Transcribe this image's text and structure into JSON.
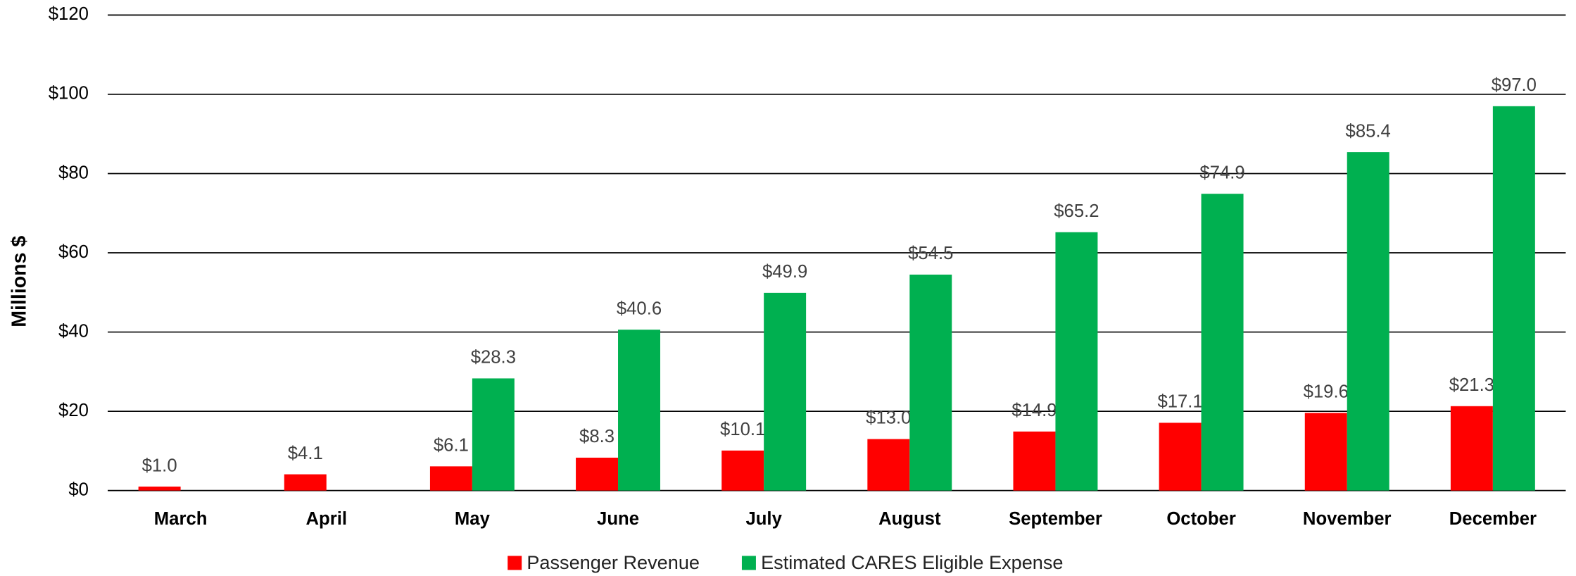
{
  "chart_data": {
    "type": "bar",
    "y_label": "Millions $",
    "categories": [
      "March",
      "April",
      "May",
      "June",
      "July",
      "August",
      "September",
      "October",
      "November",
      "December"
    ],
    "series": [
      {
        "name": "Passenger Revenue",
        "color": "#ff0000",
        "values": [
          1.0,
          4.1,
          6.1,
          8.3,
          10.1,
          13.0,
          14.9,
          17.1,
          19.6,
          21.3
        ],
        "value_labels": [
          "$1.0",
          "$4.1",
          "$6.1",
          "$8.3",
          "$10.1",
          "$13.0",
          "$14.9",
          "$17.1",
          "$19.6",
          "$21.3"
        ]
      },
      {
        "name": "Estimated CARES Eligible Expense",
        "color": "#00b050",
        "values": [
          null,
          null,
          28.3,
          40.6,
          49.9,
          54.5,
          65.2,
          74.9,
          85.4,
          97.0
        ],
        "value_labels": [
          null,
          null,
          "$28.3",
          "$40.6",
          "$49.9",
          "$54.5",
          "$65.2",
          "$74.9",
          "$85.4",
          "$97.0"
        ]
      }
    ],
    "ylim": [
      0,
      120
    ],
    "yticks": [
      {
        "value": 0,
        "label": "$0"
      },
      {
        "value": 20,
        "label": "$20"
      },
      {
        "value": 40,
        "label": "$40"
      },
      {
        "value": 60,
        "label": "$60"
      },
      {
        "value": 80,
        "label": "$80"
      },
      {
        "value": 100,
        "label": "$100"
      },
      {
        "value": 120,
        "label": "$120"
      }
    ],
    "grid": true,
    "legend": "bottom"
  }
}
